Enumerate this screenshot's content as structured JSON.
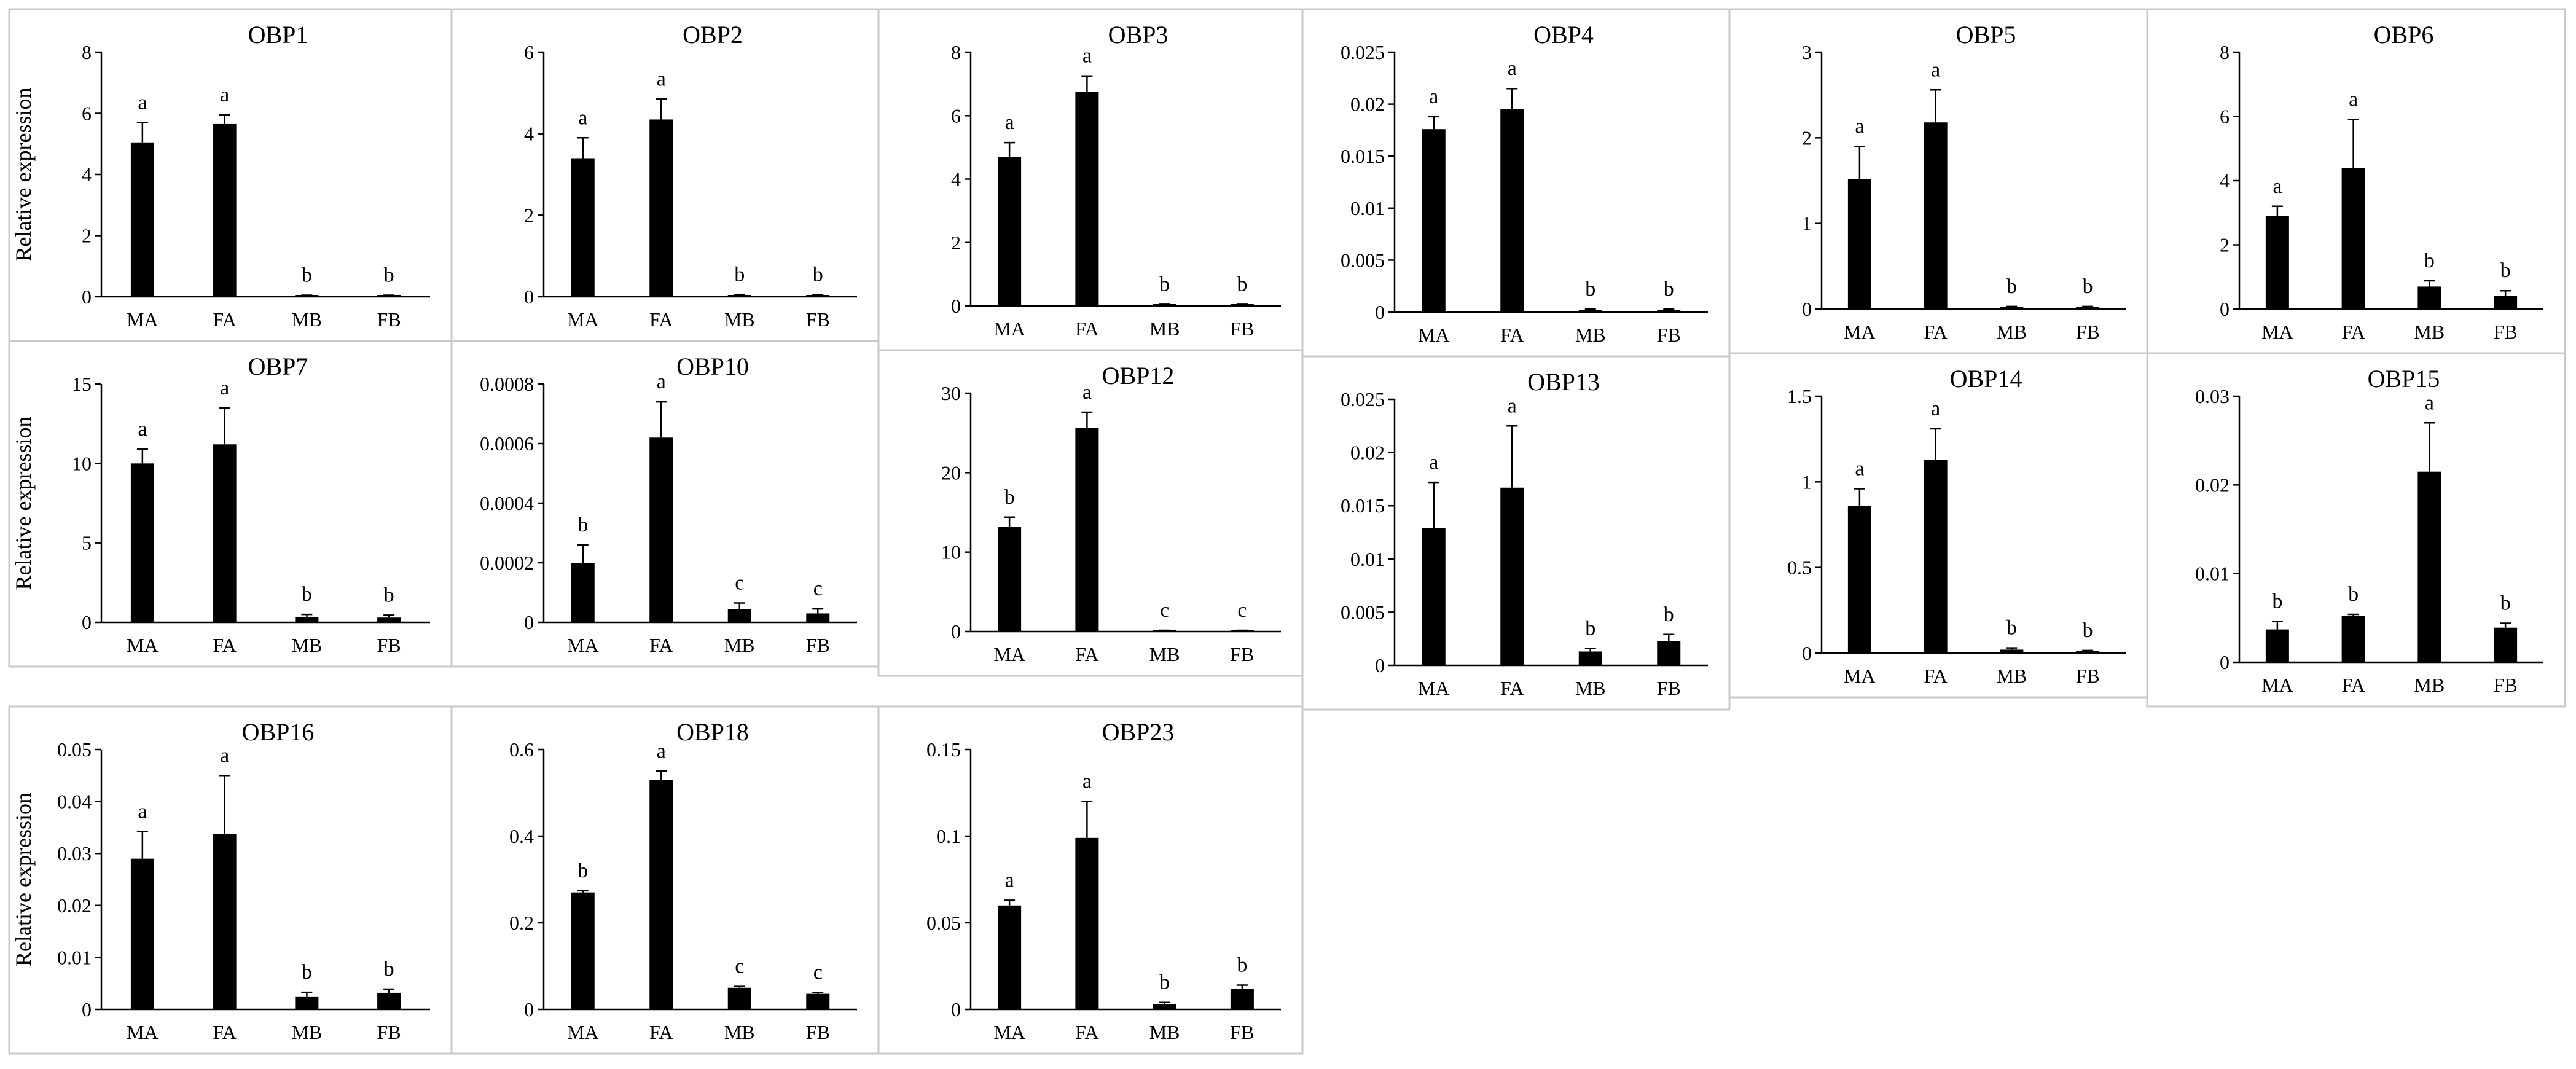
{
  "figure": {
    "ylabel": "Relative expression",
    "colors": {
      "bar": "#000000",
      "border": "#c8c8c8"
    }
  },
  "chart_data": [
    {
      "type": "bar",
      "title": "OBP1",
      "categories": [
        "MA",
        "FA",
        "MB",
        "FB"
      ],
      "values": [
        5.05,
        5.65,
        0.03,
        0.03
      ],
      "errors": [
        0.65,
        0.3,
        0.02,
        0.02
      ],
      "letters": [
        "a",
        "a",
        "b",
        "b"
      ],
      "ylim": [
        0,
        8
      ],
      "yticks": [
        "0",
        "2",
        "4",
        "6",
        "8"
      ],
      "ylabel": "Relative expression"
    },
    {
      "type": "bar",
      "title": "OBP2",
      "categories": [
        "MA",
        "FA",
        "MB",
        "FB"
      ],
      "values": [
        3.4,
        4.35,
        0.03,
        0.03
      ],
      "errors": [
        0.5,
        0.5,
        0.02,
        0.02
      ],
      "letters": [
        "a",
        "a",
        "b",
        "b"
      ],
      "ylim": [
        0,
        6
      ],
      "yticks": [
        "0",
        "2",
        "4",
        "6"
      ],
      "ylabel": ""
    },
    {
      "type": "bar",
      "title": "OBP3",
      "categories": [
        "MA",
        "FA",
        "MB",
        "FB"
      ],
      "values": [
        4.7,
        6.75,
        0.03,
        0.03
      ],
      "errors": [
        0.45,
        0.5,
        0.02,
        0.02
      ],
      "letters": [
        "a",
        "a",
        "b",
        "b"
      ],
      "ylim": [
        0,
        8
      ],
      "yticks": [
        "0",
        "2",
        "4",
        "6",
        "8"
      ],
      "ylabel": ""
    },
    {
      "type": "bar",
      "title": "OBP4",
      "categories": [
        "MA",
        "FA",
        "MB",
        "FB"
      ],
      "values": [
        0.0176,
        0.0195,
        0.0002,
        0.0002
      ],
      "errors": [
        0.0012,
        0.002,
        0.0001,
        0.0001
      ],
      "letters": [
        "a",
        "a",
        "b",
        "b"
      ],
      "ylim": [
        0,
        0.025
      ],
      "yticks": [
        "0",
        "0.005",
        "0.01",
        "0.015",
        "0.02",
        "0.025"
      ],
      "ylabel": ""
    },
    {
      "type": "bar",
      "title": "OBP5",
      "categories": [
        "MA",
        "FA",
        "MB",
        "FB"
      ],
      "values": [
        1.52,
        2.18,
        0.02,
        0.02
      ],
      "errors": [
        0.38,
        0.38,
        0.01,
        0.01
      ],
      "letters": [
        "a",
        "a",
        "b",
        "b"
      ],
      "ylim": [
        0,
        3
      ],
      "yticks": [
        "0",
        "1",
        "2",
        "3"
      ],
      "ylabel": ""
    },
    {
      "type": "bar",
      "title": "OBP6",
      "categories": [
        "MA",
        "FA",
        "MB",
        "FB"
      ],
      "values": [
        2.9,
        4.4,
        0.7,
        0.42
      ],
      "errors": [
        0.3,
        1.5,
        0.18,
        0.15
      ],
      "letters": [
        "a",
        "a",
        "b",
        "b"
      ],
      "ylim": [
        0,
        8
      ],
      "yticks": [
        "0",
        "2",
        "4",
        "6",
        "8"
      ],
      "ylabel": ""
    },
    {
      "type": "bar",
      "title": "OBP7",
      "categories": [
        "MA",
        "FA",
        "MB",
        "FB"
      ],
      "values": [
        10.0,
        11.2,
        0.35,
        0.3
      ],
      "errors": [
        0.9,
        2.3,
        0.15,
        0.15
      ],
      "letters": [
        "a",
        "a",
        "b",
        "b"
      ],
      "ylim": [
        0,
        15
      ],
      "yticks": [
        "0",
        "5",
        "10",
        "15"
      ],
      "ylabel": "Relative expression"
    },
    {
      "type": "bar",
      "title": "OBP10",
      "categories": [
        "MA",
        "FA",
        "MB",
        "FB"
      ],
      "values": [
        0.0002,
        0.00062,
        4.5e-05,
        3e-05
      ],
      "errors": [
        6e-05,
        0.00012,
        2e-05,
        1.5e-05
      ],
      "letters": [
        "b",
        "a",
        "c",
        "c"
      ],
      "ylim": [
        0,
        0.0008
      ],
      "yticks": [
        "0",
        "0.0002",
        "0.0004",
        "0.0006",
        "0.0008"
      ],
      "ylabel": ""
    },
    {
      "type": "bar",
      "title": "OBP12",
      "categories": [
        "MA",
        "FA",
        "MB",
        "FB"
      ],
      "values": [
        13.2,
        25.6,
        0.1,
        0.1
      ],
      "errors": [
        1.2,
        2.0,
        0.05,
        0.05
      ],
      "letters": [
        "b",
        "a",
        "c",
        "c"
      ],
      "ylim": [
        0,
        30
      ],
      "yticks": [
        "0",
        "10",
        "20",
        "30"
      ],
      "ylabel": ""
    },
    {
      "type": "bar",
      "title": "OBP13",
      "categories": [
        "MA",
        "FA",
        "MB",
        "FB"
      ],
      "values": [
        0.0129,
        0.0167,
        0.0013,
        0.0023
      ],
      "errors": [
        0.0043,
        0.0058,
        0.0003,
        0.0006
      ],
      "letters": [
        "a",
        "a",
        "b",
        "b"
      ],
      "ylim": [
        0,
        0.025
      ],
      "yticks": [
        "0",
        "0.005",
        "0.01",
        "0.015",
        "0.02",
        "0.025"
      ],
      "ylabel": ""
    },
    {
      "type": "bar",
      "title": "OBP14",
      "categories": [
        "MA",
        "FA",
        "MB",
        "FB"
      ],
      "values": [
        0.86,
        1.13,
        0.02,
        0.01
      ],
      "errors": [
        0.1,
        0.18,
        0.01,
        0.005
      ],
      "letters": [
        "a",
        "a",
        "b",
        "b"
      ],
      "ylim": [
        0,
        1.5
      ],
      "yticks": [
        "0",
        "0.5",
        "1",
        "1.5"
      ],
      "ylabel": ""
    },
    {
      "type": "bar",
      "title": "OBP15",
      "categories": [
        "MA",
        "FA",
        "MB",
        "FB"
      ],
      "values": [
        0.0037,
        0.0052,
        0.0215,
        0.0039
      ],
      "errors": [
        0.0009,
        0.0002,
        0.0055,
        0.0005
      ],
      "letters": [
        "b",
        "b",
        "a",
        "b"
      ],
      "ylim": [
        0,
        0.03
      ],
      "yticks": [
        "0",
        "0.01",
        "0.02",
        "0.03"
      ],
      "ylabel": ""
    },
    {
      "type": "bar",
      "title": "OBP16",
      "categories": [
        "MA",
        "FA",
        "MB",
        "FB"
      ],
      "values": [
        0.029,
        0.0337,
        0.0025,
        0.0032
      ],
      "errors": [
        0.0052,
        0.0113,
        0.0008,
        0.0007
      ],
      "letters": [
        "a",
        "a",
        "b",
        "b"
      ],
      "ylim": [
        0,
        0.05
      ],
      "yticks": [
        "0",
        "0.01",
        "0.02",
        "0.03",
        "0.04",
        "0.05"
      ],
      "ylabel": "Relative expression"
    },
    {
      "type": "bar",
      "title": "OBP18",
      "categories": [
        "MA",
        "FA",
        "MB",
        "FB"
      ],
      "values": [
        0.27,
        0.53,
        0.05,
        0.036
      ],
      "errors": [
        0.004,
        0.02,
        0.003,
        0.003
      ],
      "letters": [
        "b",
        "a",
        "c",
        "c"
      ],
      "ylim": [
        0,
        0.6
      ],
      "yticks": [
        "0",
        "0.2",
        "0.4",
        "0.6"
      ],
      "ylabel": ""
    },
    {
      "type": "bar",
      "title": "OBP23",
      "categories": [
        "MA",
        "FA",
        "MB",
        "FB"
      ],
      "values": [
        0.06,
        0.099,
        0.003,
        0.012
      ],
      "errors": [
        0.003,
        0.021,
        0.001,
        0.002
      ],
      "letters": [
        "a",
        "a",
        "b",
        "b"
      ],
      "ylim": [
        0,
        0.15
      ],
      "yticks": [
        "0",
        "0.05",
        "0.1",
        "0.15"
      ],
      "ylabel": ""
    }
  ]
}
